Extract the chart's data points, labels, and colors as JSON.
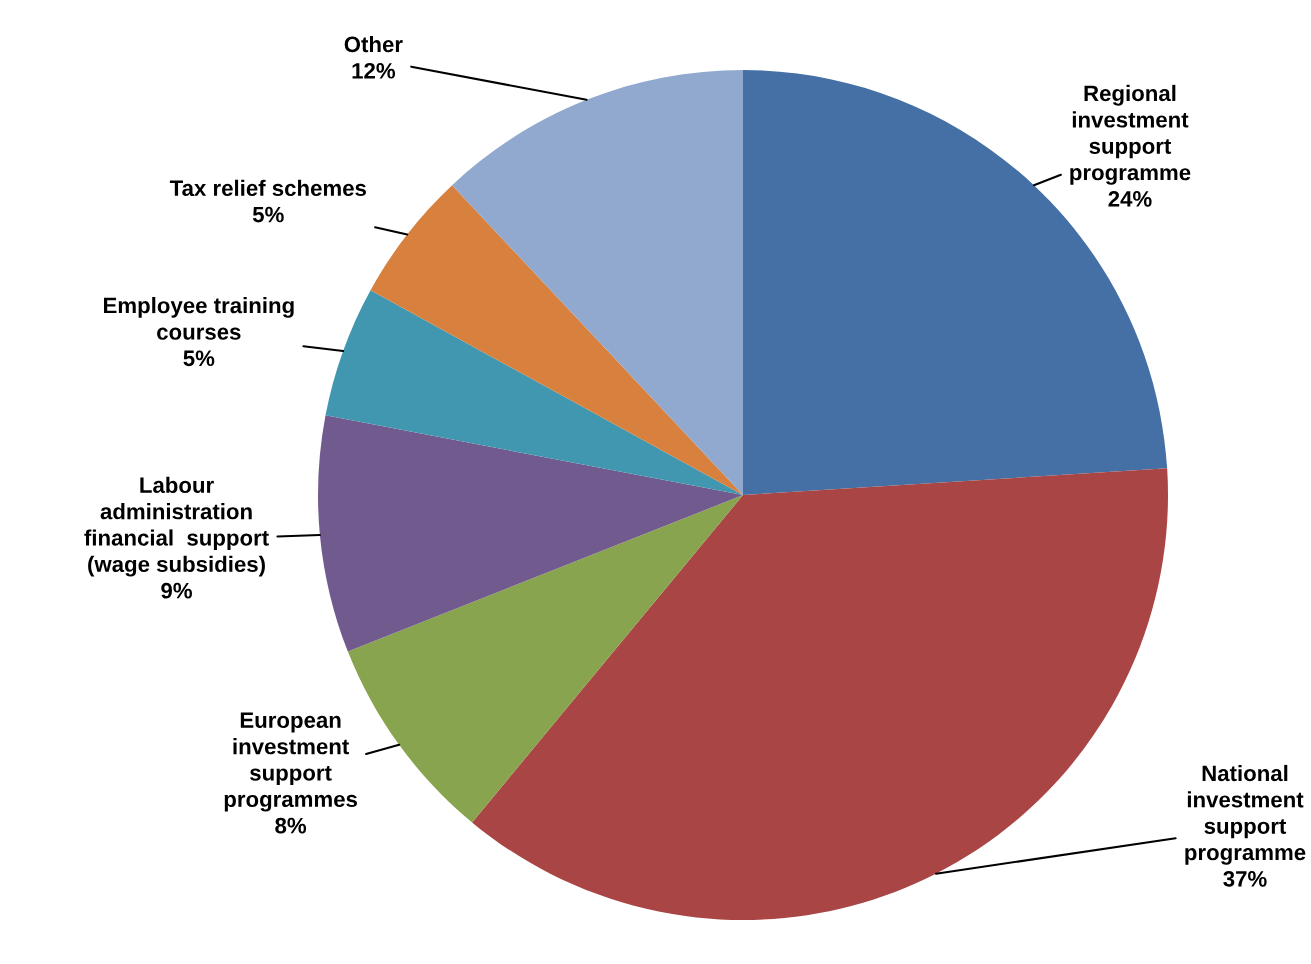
{
  "chart_data": {
    "type": "pie",
    "categories": [
      "Regional\ninvestment\nsupport\nprogramme",
      "National\ninvestment\nsupport\nprogramme",
      "European\ninvestment\nsupport\nprogrammes",
      "Labour\nadministration\nfinancial  support\n(wage subsidies)",
      "Employee training\ncourses",
      "Tax relief schemes",
      "Other"
    ],
    "values": [
      24,
      37,
      8,
      9,
      5,
      5,
      12
    ],
    "value_labels": [
      "24%",
      "37%",
      "8%",
      "9%",
      "5%",
      "5%",
      "12%"
    ],
    "colors": [
      "#4470a5",
      "#a94544",
      "#88a44e",
      "#715a8e",
      "#4197b0",
      "#d8803d",
      "#91a9cf"
    ],
    "legend": false
  }
}
